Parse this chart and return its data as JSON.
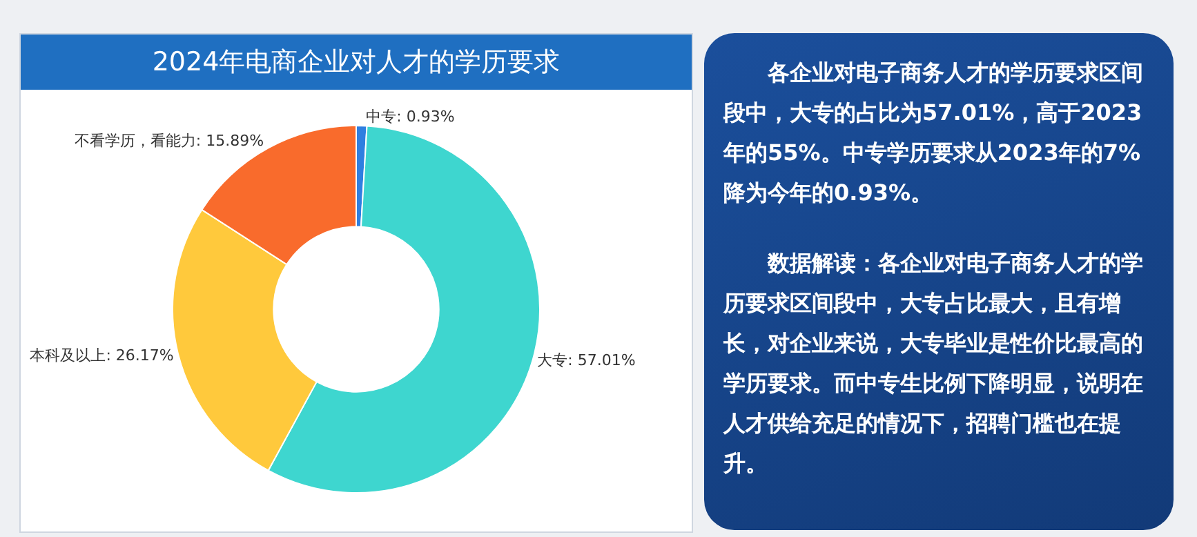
{
  "chart_data": [
    {
      "type": "donut",
      "title": "2024年电商企业对人才的学历要求",
      "categories": [
        "中专",
        "大专",
        "本科及以上",
        "不看学历，看能力"
      ],
      "values": [
        0.93,
        57.01,
        26.17,
        15.89
      ],
      "value_labels": [
        "0.93%",
        "57.01%",
        "26.17%",
        "15.89%"
      ],
      "colors": [
        "#2f7fe0",
        "#3ed6cf",
        "#ffc93c",
        "#f96b2c"
      ],
      "legend": false
    },
    {
      "type": "other",
      "annotations": [
        "各企业对电子商务人才的学历要求区间段中，大专的占比为57.01%，高于2023年的55%。中专学历要求从2023年的7%降为今年的0.93%。",
        "数据解读：各企业对电子商务人才的学历要求区间段中，大专占比最大，且有增长，对企业来说，大专毕业是性价比最高的学历要求。而中专生比例下降明显，说明在人才供给充足的情况下，招聘门槛也在提升。"
      ]
    }
  ]
}
